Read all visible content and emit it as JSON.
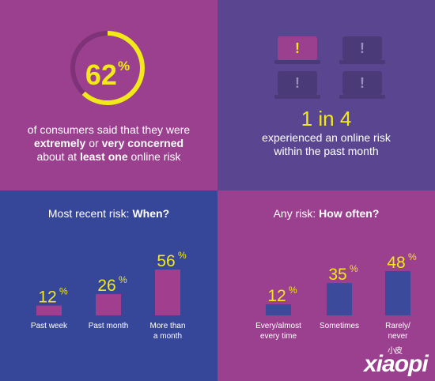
{
  "stats": {
    "percent_value": "62",
    "percent_sign": "%",
    "consumers_text_1": "of consumers said that they were",
    "bold_extremely": "extremely",
    "or_word": " or ",
    "bold_very_concerned": "very concerned",
    "about_at": "about at ",
    "bold_least_one": "least one",
    "online_risk": " online risk",
    "one_in_four": "1 in 4",
    "experienced_line1": "experienced an online risk",
    "experienced_line2": "within the past month",
    "warning_glyph": "!"
  },
  "colors": {
    "purple": "#9b3f8f",
    "violet": "#5a4690",
    "blue": "#36479a",
    "yellow": "#f1e91a",
    "bar_pink": "#a13e8d",
    "bar_blue": "#3b4a9a"
  },
  "icons": [
    "laptop-warning-icon",
    "laptop-warning-icon",
    "laptop-warning-icon",
    "laptop-warning-icon"
  ],
  "watermark": {
    "small": "小皮",
    "main": "xiaopi"
  },
  "chart_data": [
    {
      "type": "bar",
      "title_prefix": "Most recent risk: ",
      "title_bold": "When?",
      "categories": [
        "Past week",
        "Past month",
        "More than|a month"
      ],
      "values": [
        12,
        26,
        56
      ],
      "unit": "%",
      "ylim": [
        0,
        56
      ]
    },
    {
      "type": "bar",
      "title_prefix": "Any risk: ",
      "title_bold": "How often?",
      "categories": [
        "Every/almost|every time",
        "Sometimes",
        "Rarely/|never"
      ],
      "values": [
        12,
        35,
        48
      ],
      "unit": "%",
      "ylim": [
        0,
        48
      ]
    }
  ]
}
